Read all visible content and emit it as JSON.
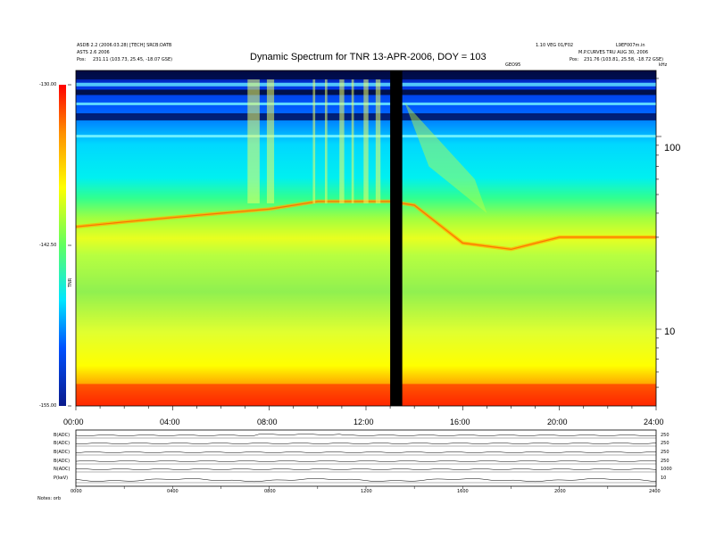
{
  "header": {
    "title": "Dynamic Spectrum for TNR 13-APR-2006, DOY = 103",
    "left_line1": "ASDB 2.2 (2006.03.28) [TECH] SRCB:DATB",
    "left_line2": "ASTS 2.6 2006",
    "left_pos_label": "Pos:",
    "left_pos_value": "231.11 (103.73, 25.45, -18.07 GSE)",
    "right_line1": "1.10 VEG 01/F02",
    "right_line2": "M.P.CURVES TRU AUG 30, 2006",
    "right_pos_label": "Pos:",
    "right_pos_value": "231.76 (103.81, 25.58, -18.72 GSE)",
    "right_corner": "L9EF007m.in",
    "freq_unit": "kHz",
    "center_tag": "GEO95"
  },
  "colorbar": {
    "top_label": "-130.00",
    "mid_label": "-142.50",
    "bottom_label": "-155.00",
    "unit": "TNR"
  },
  "chart_data": {
    "type": "heatmap",
    "title": "Dynamic Spectrum for TNR 13-APR-2006, DOY = 103",
    "x_tick_labels": [
      "00:00",
      "04:00",
      "08:00",
      "12:00",
      "16:00",
      "20:00",
      "24:00"
    ],
    "x_range_hours": [
      0,
      24
    ],
    "y_scale": "log",
    "y_tick_labels": [
      "100",
      "10"
    ],
    "y_unit": "kHz",
    "color_range": [
      -155.0,
      -130.0
    ],
    "data_gap_hours": [
      13.0,
      13.5
    ],
    "background_level_profile": {
      "hours": [
        0,
        2,
        4,
        6,
        8,
        10,
        12,
        13,
        14,
        16,
        18,
        20,
        22,
        24
      ],
      "cutoff_khz": [
        34,
        36,
        38,
        40,
        42,
        46,
        46,
        46,
        44,
        28,
        26,
        30,
        30,
        30
      ]
    }
  },
  "bottom_panel": {
    "rows": [
      "B(ADC)",
      "B(ADC)",
      "B(ADC)",
      "B(ADC)",
      "N(ADC)",
      "P(keV)"
    ],
    "right_labels": [
      "250",
      "250",
      "250",
      "250",
      "1000",
      "10"
    ],
    "x_tick_labels": [
      "0000",
      "0400",
      "0800",
      "1200",
      "1600",
      "2000",
      "2400"
    ],
    "footnote": "Notes: orb"
  }
}
